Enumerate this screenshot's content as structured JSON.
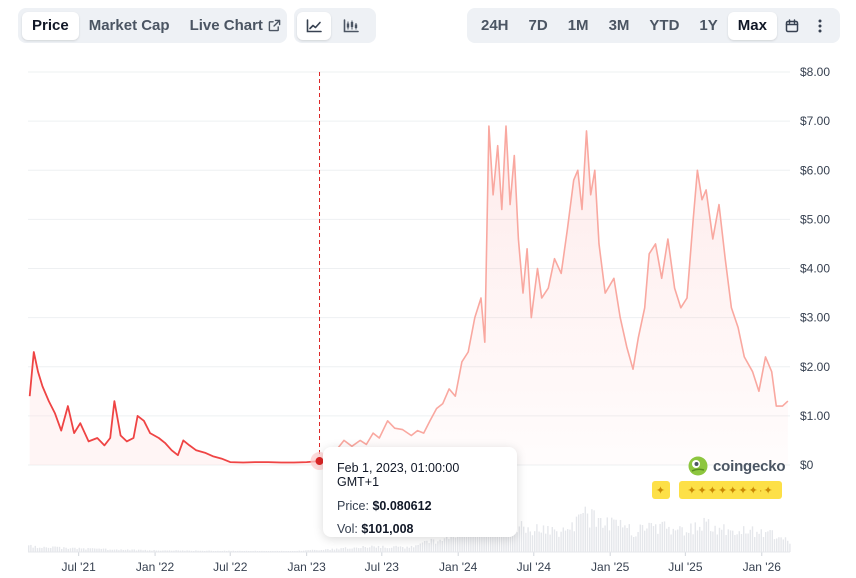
{
  "metric_tabs": [
    {
      "label": "Price",
      "active": true
    },
    {
      "label": "Market Cap",
      "active": false
    },
    {
      "label": "Live Chart",
      "active": false
    }
  ],
  "chart_view_icons": [
    "line-chart-icon",
    "candlestick-chart-icon"
  ],
  "range_tabs": [
    {
      "label": "24H",
      "active": false
    },
    {
      "label": "7D",
      "active": false
    },
    {
      "label": "1M",
      "active": false
    },
    {
      "label": "3M",
      "active": false
    },
    {
      "label": "YTD",
      "active": false
    },
    {
      "label": "1Y",
      "active": false
    },
    {
      "label": "Max",
      "active": true
    }
  ],
  "toolbar_icons": [
    "calendar-icon",
    "more-vertical-icon"
  ],
  "tooltip": {
    "date": "Feb 1, 2023, 01:00:00 GMT+1",
    "price_label": "Price:",
    "price_value": "$0.080612",
    "vol_label": "Vol:",
    "vol_value": "$101,008"
  },
  "watermark": "coingecko",
  "colors": {
    "price_line": "#ef4444",
    "price_line_after": "#f9a8a0",
    "crosshair": "#dc2626",
    "volume": "#e5e7eb",
    "grid": "#eef0f2"
  },
  "chart_data": {
    "type": "line",
    "x_tick_labels": [
      "Jul '21",
      "Jan '22",
      "Jul '22",
      "Jan '23",
      "Jul '23",
      "Jan '24",
      "Jul '24",
      "Jan '25",
      "Jul '25",
      "Jan '26"
    ],
    "y_tick_labels": [
      "$0",
      "$1.00",
      "$2.00",
      "$3.00",
      "$4.00",
      "$5.00",
      "$6.00",
      "$7.00",
      "$8.00"
    ],
    "ylim": [
      0,
      8
    ],
    "xlim": [
      "2021-03-01",
      "2026-03-10"
    ],
    "grid": true,
    "highlight": {
      "date": "2023-02-01",
      "price": 0.080612,
      "volume": 101008
    },
    "series": [
      {
        "values": [
          [
            "2021-03-05",
            1.4
          ],
          [
            "2021-03-15",
            2.3
          ],
          [
            "2021-03-25",
            1.9
          ],
          [
            "2021-04-05",
            1.6
          ],
          [
            "2021-04-20",
            1.3
          ],
          [
            "2021-05-05",
            1.05
          ],
          [
            "2021-05-20",
            0.7
          ],
          [
            "2021-06-05",
            1.2
          ],
          [
            "2021-06-20",
            0.65
          ],
          [
            "2021-07-05",
            0.85
          ],
          [
            "2021-07-25",
            0.48
          ],
          [
            "2021-08-15",
            0.55
          ],
          [
            "2021-09-01",
            0.4
          ],
          [
            "2021-09-15",
            0.55
          ],
          [
            "2021-09-25",
            1.3
          ],
          [
            "2021-10-10",
            0.6
          ],
          [
            "2021-10-25",
            0.48
          ],
          [
            "2021-11-10",
            0.55
          ],
          [
            "2021-11-20",
            1.0
          ],
          [
            "2021-12-05",
            0.9
          ],
          [
            "2021-12-20",
            0.65
          ],
          [
            "2022-01-10",
            0.55
          ],
          [
            "2022-01-25",
            0.45
          ],
          [
            "2022-02-10",
            0.3
          ],
          [
            "2022-02-25",
            0.2
          ],
          [
            "2022-03-10",
            0.5
          ],
          [
            "2022-03-25",
            0.4
          ],
          [
            "2022-04-10",
            0.3
          ],
          [
            "2022-05-01",
            0.25
          ],
          [
            "2022-05-20",
            0.18
          ],
          [
            "2022-06-10",
            0.13
          ],
          [
            "2022-07-01",
            0.06
          ],
          [
            "2022-08-01",
            0.05
          ],
          [
            "2022-09-01",
            0.06
          ],
          [
            "2022-10-01",
            0.06
          ],
          [
            "2022-11-01",
            0.05
          ],
          [
            "2022-12-01",
            0.05
          ],
          [
            "2023-01-01",
            0.06
          ],
          [
            "2023-02-01",
            0.08
          ],
          [
            "2023-02-20",
            0.12
          ],
          [
            "2023-03-15",
            0.32
          ],
          [
            "2023-04-01",
            0.5
          ],
          [
            "2023-04-20",
            0.38
          ],
          [
            "2023-05-10",
            0.5
          ],
          [
            "2023-05-25",
            0.42
          ],
          [
            "2023-06-10",
            0.65
          ],
          [
            "2023-06-25",
            0.55
          ],
          [
            "2023-07-15",
            0.9
          ],
          [
            "2023-08-01",
            0.75
          ],
          [
            "2023-08-20",
            0.72
          ],
          [
            "2023-09-10",
            0.6
          ],
          [
            "2023-09-25",
            0.7
          ],
          [
            "2023-10-10",
            0.65
          ],
          [
            "2023-10-25",
            0.9
          ],
          [
            "2023-11-10",
            1.15
          ],
          [
            "2023-11-25",
            1.25
          ],
          [
            "2023-12-10",
            1.55
          ],
          [
            "2023-12-25",
            1.4
          ],
          [
            "2024-01-10",
            2.1
          ],
          [
            "2024-01-25",
            2.3
          ],
          [
            "2024-02-10",
            3.0
          ],
          [
            "2024-02-25",
            3.4
          ],
          [
            "2024-03-05",
            2.5
          ],
          [
            "2024-03-15",
            6.9
          ],
          [
            "2024-03-25",
            5.5
          ],
          [
            "2024-04-05",
            6.5
          ],
          [
            "2024-04-15",
            5.2
          ],
          [
            "2024-04-25",
            6.9
          ],
          [
            "2024-05-05",
            5.3
          ],
          [
            "2024-05-15",
            6.3
          ],
          [
            "2024-05-25",
            4.6
          ],
          [
            "2024-06-05",
            3.5
          ],
          [
            "2024-06-15",
            4.4
          ],
          [
            "2024-06-25",
            3.0
          ],
          [
            "2024-07-10",
            4.0
          ],
          [
            "2024-07-20",
            3.4
          ],
          [
            "2024-08-05",
            3.6
          ],
          [
            "2024-08-20",
            4.2
          ],
          [
            "2024-09-05",
            3.9
          ],
          [
            "2024-09-20",
            4.8
          ],
          [
            "2024-10-05",
            5.8
          ],
          [
            "2024-10-15",
            6.0
          ],
          [
            "2024-10-25",
            5.2
          ],
          [
            "2024-11-05",
            6.8
          ],
          [
            "2024-11-15",
            5.5
          ],
          [
            "2024-11-25",
            6.0
          ],
          [
            "2024-12-05",
            4.5
          ],
          [
            "2024-12-20",
            3.5
          ],
          [
            "2025-01-10",
            3.8
          ],
          [
            "2025-01-25",
            3.0
          ],
          [
            "2025-02-10",
            2.4
          ],
          [
            "2025-02-25",
            1.95
          ],
          [
            "2025-03-10",
            2.6
          ],
          [
            "2025-03-25",
            3.2
          ],
          [
            "2025-04-05",
            4.3
          ],
          [
            "2025-04-20",
            4.5
          ],
          [
            "2025-05-05",
            3.8
          ],
          [
            "2025-05-20",
            4.6
          ],
          [
            "2025-06-05",
            3.6
          ],
          [
            "2025-06-20",
            3.2
          ],
          [
            "2025-07-05",
            3.4
          ],
          [
            "2025-07-20",
            5.0
          ],
          [
            "2025-07-30",
            6.0
          ],
          [
            "2025-08-10",
            5.4
          ],
          [
            "2025-08-20",
            5.6
          ],
          [
            "2025-09-05",
            4.6
          ],
          [
            "2025-09-20",
            5.3
          ],
          [
            "2025-10-05",
            4.2
          ],
          [
            "2025-10-20",
            3.2
          ],
          [
            "2025-11-05",
            2.8
          ],
          [
            "2025-11-20",
            2.2
          ],
          [
            "2025-12-10",
            1.9
          ],
          [
            "2025-12-25",
            1.5
          ],
          [
            "2026-01-10",
            2.2
          ],
          [
            "2026-01-25",
            1.9
          ],
          [
            "2026-02-05",
            1.2
          ],
          [
            "2026-02-20",
            1.2
          ],
          [
            "2026-03-05",
            1.3
          ]
        ]
      }
    ],
    "volume": {
      "unit": "USD",
      "values": [
        [
          "2021-03-05",
          600000
        ],
        [
          "2021-06-01",
          400000
        ],
        [
          "2021-09-01",
          300000
        ],
        [
          "2021-12-01",
          200000
        ],
        [
          "2022-03-01",
          150000
        ],
        [
          "2022-06-01",
          120000
        ],
        [
          "2022-09-01",
          100000
        ],
        [
          "2022-12-01",
          100000
        ],
        [
          "2023-03-01",
          300000
        ],
        [
          "2023-06-01",
          600000
        ],
        [
          "2023-09-01",
          500000
        ],
        [
          "2023-12-01",
          1500000
        ],
        [
          "2024-02-01",
          2500000
        ],
        [
          "2024-03-15",
          4000000
        ],
        [
          "2024-05-01",
          3000000
        ],
        [
          "2024-07-01",
          2500000
        ],
        [
          "2024-09-01",
          2000000
        ],
        [
          "2024-11-01",
          3800000
        ],
        [
          "2025-01-01",
          3000000
        ],
        [
          "2025-03-01",
          2200000
        ],
        [
          "2025-05-01",
          2800000
        ],
        [
          "2025-07-01",
          2000000
        ],
        [
          "2025-08-01",
          3200000
        ],
        [
          "2025-10-01",
          2400000
        ],
        [
          "2025-12-01",
          2200000
        ],
        [
          "2026-02-01",
          1800000
        ],
        [
          "2026-03-05",
          1200000
        ]
      ]
    }
  }
}
